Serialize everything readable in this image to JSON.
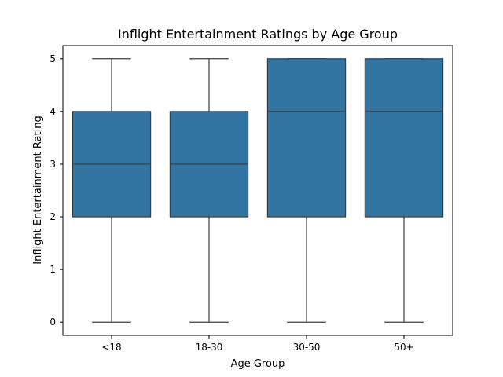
{
  "chart_data": {
    "type": "box",
    "title": "Inflight Entertainment Ratings by Age Group",
    "xlabel": "Age Group",
    "ylabel": "Inflight Entertainment Rating",
    "categories": [
      "<18",
      "18-30",
      "30-50",
      "50+"
    ],
    "boxes": [
      {
        "category": "<18",
        "min": 0,
        "q1": 2,
        "median": 3,
        "q3": 4,
        "max": 5
      },
      {
        "category": "18-30",
        "min": 0,
        "q1": 2,
        "median": 3,
        "q3": 4,
        "max": 5
      },
      {
        "category": "30-50",
        "min": 0,
        "q1": 2,
        "median": 4,
        "q3": 5,
        "max": 5
      },
      {
        "category": "50+",
        "min": 0,
        "q1": 2,
        "median": 4,
        "q3": 5,
        "max": 5
      }
    ],
    "yticks": [
      0,
      1,
      2,
      3,
      4,
      5
    ],
    "ylim": [
      -0.25,
      5.25
    ],
    "box_color": "#3274a1",
    "line_color": "#3d3d3d",
    "grid": false
  }
}
